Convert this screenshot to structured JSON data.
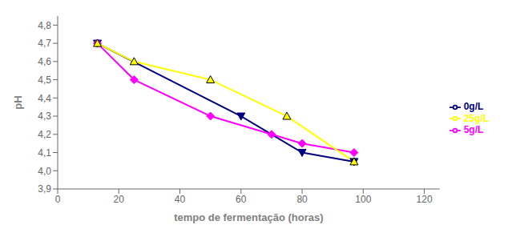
{
  "chart_data": {
    "type": "line",
    "xlabel": "tempo de fermentação (horas)",
    "ylabel": "pH",
    "xlim": [
      0,
      125
    ],
    "ylim": [
      3.9,
      4.85
    ],
    "xticks": [
      0,
      20,
      40,
      60,
      80,
      100,
      120
    ],
    "yticks": [
      {
        "value": 3.9,
        "label": "3,9"
      },
      {
        "value": 4.0,
        "label": "4,0"
      },
      {
        "value": 4.1,
        "label": "4,1"
      },
      {
        "value": 4.2,
        "label": "4,2"
      },
      {
        "value": 4.3,
        "label": "4,3"
      },
      {
        "value": 4.4,
        "label": "4,4"
      },
      {
        "value": 4.5,
        "label": "4,5"
      },
      {
        "value": 4.6,
        "label": "4,6"
      },
      {
        "value": 4.7,
        "label": "4,7"
      },
      {
        "value": 4.8,
        "label": "4,8"
      }
    ],
    "grid": false,
    "legend": "right",
    "series": [
      {
        "name": "0g/L",
        "color": "#000080",
        "marker": "triangle-down",
        "x": [
          13,
          60,
          80,
          97
        ],
        "values": [
          4.7,
          4.3,
          4.1,
          4.05
        ]
      },
      {
        "name": "5g/L",
        "color": "#FF00FF",
        "marker": "diamond",
        "x": [
          13,
          25,
          50,
          70,
          80,
          97
        ],
        "values": [
          4.7,
          4.5,
          4.3,
          4.2,
          4.15,
          4.1
        ]
      },
      {
        "name": "25g/L",
        "color": "#FFFF00",
        "marker": "triangle-up",
        "x": [
          13,
          25,
          50,
          75,
          97
        ],
        "values": [
          4.7,
          4.6,
          4.5,
          4.3,
          4.05
        ]
      }
    ]
  }
}
